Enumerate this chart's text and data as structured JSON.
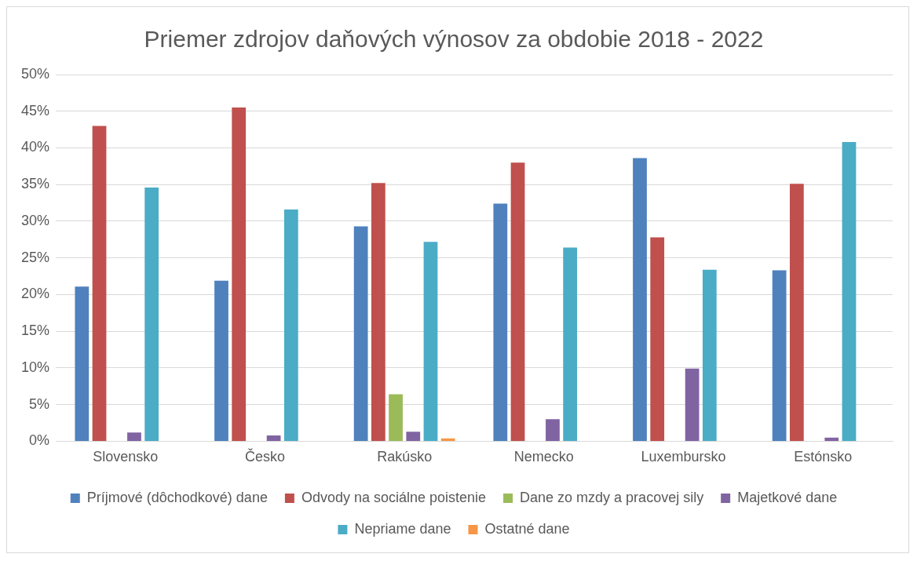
{
  "chart_data": {
    "type": "bar",
    "title": "Priemer zdrojov daňových výnosov za obdobie 2018 - 2022",
    "categories": [
      "Slovensko",
      "Česko",
      "Rakúsko",
      "Nemecko",
      "Luxembursko",
      "Estónsko"
    ],
    "series": [
      {
        "name": "Príjmové (dôchodkové) dane",
        "color": "#4f81bd",
        "values": [
          21.1,
          21.9,
          29.3,
          32.4,
          38.6,
          23.3
        ]
      },
      {
        "name": "Odvody na sociálne poistenie",
        "color": "#c0504d",
        "values": [
          43.0,
          45.5,
          35.2,
          38.0,
          27.8,
          35.1
        ]
      },
      {
        "name": "Dane zo mzdy a pracovej sily",
        "color": "#9bbb59",
        "values": [
          0,
          0,
          6.4,
          0,
          0,
          0
        ]
      },
      {
        "name": "Majetkové dane",
        "color": "#8064a2",
        "values": [
          1.2,
          0.8,
          1.3,
          3.0,
          9.9,
          0.5
        ]
      },
      {
        "name": "Nepriame dane",
        "color": "#4bacc6",
        "values": [
          34.6,
          31.6,
          27.2,
          26.4,
          23.4,
          40.8
        ]
      },
      {
        "name": "Ostatné dane",
        "color": "#f79646",
        "values": [
          0,
          0,
          0.4,
          0,
          0,
          0
        ]
      }
    ],
    "ylim": [
      0,
      50
    ],
    "yticks": [
      {
        "value": 0,
        "label": "0%"
      },
      {
        "value": 5,
        "label": "5%"
      },
      {
        "value": 10,
        "label": "10%"
      },
      {
        "value": 15,
        "label": "15%"
      },
      {
        "value": 20,
        "label": "20%"
      },
      {
        "value": 25,
        "label": "25%"
      },
      {
        "value": 30,
        "label": "30%"
      },
      {
        "value": 35,
        "label": "35%"
      },
      {
        "value": 40,
        "label": "40%"
      },
      {
        "value": 45,
        "label": "45%"
      },
      {
        "value": 50,
        "label": "50%"
      }
    ],
    "grid": "y",
    "legend": "bottom"
  }
}
